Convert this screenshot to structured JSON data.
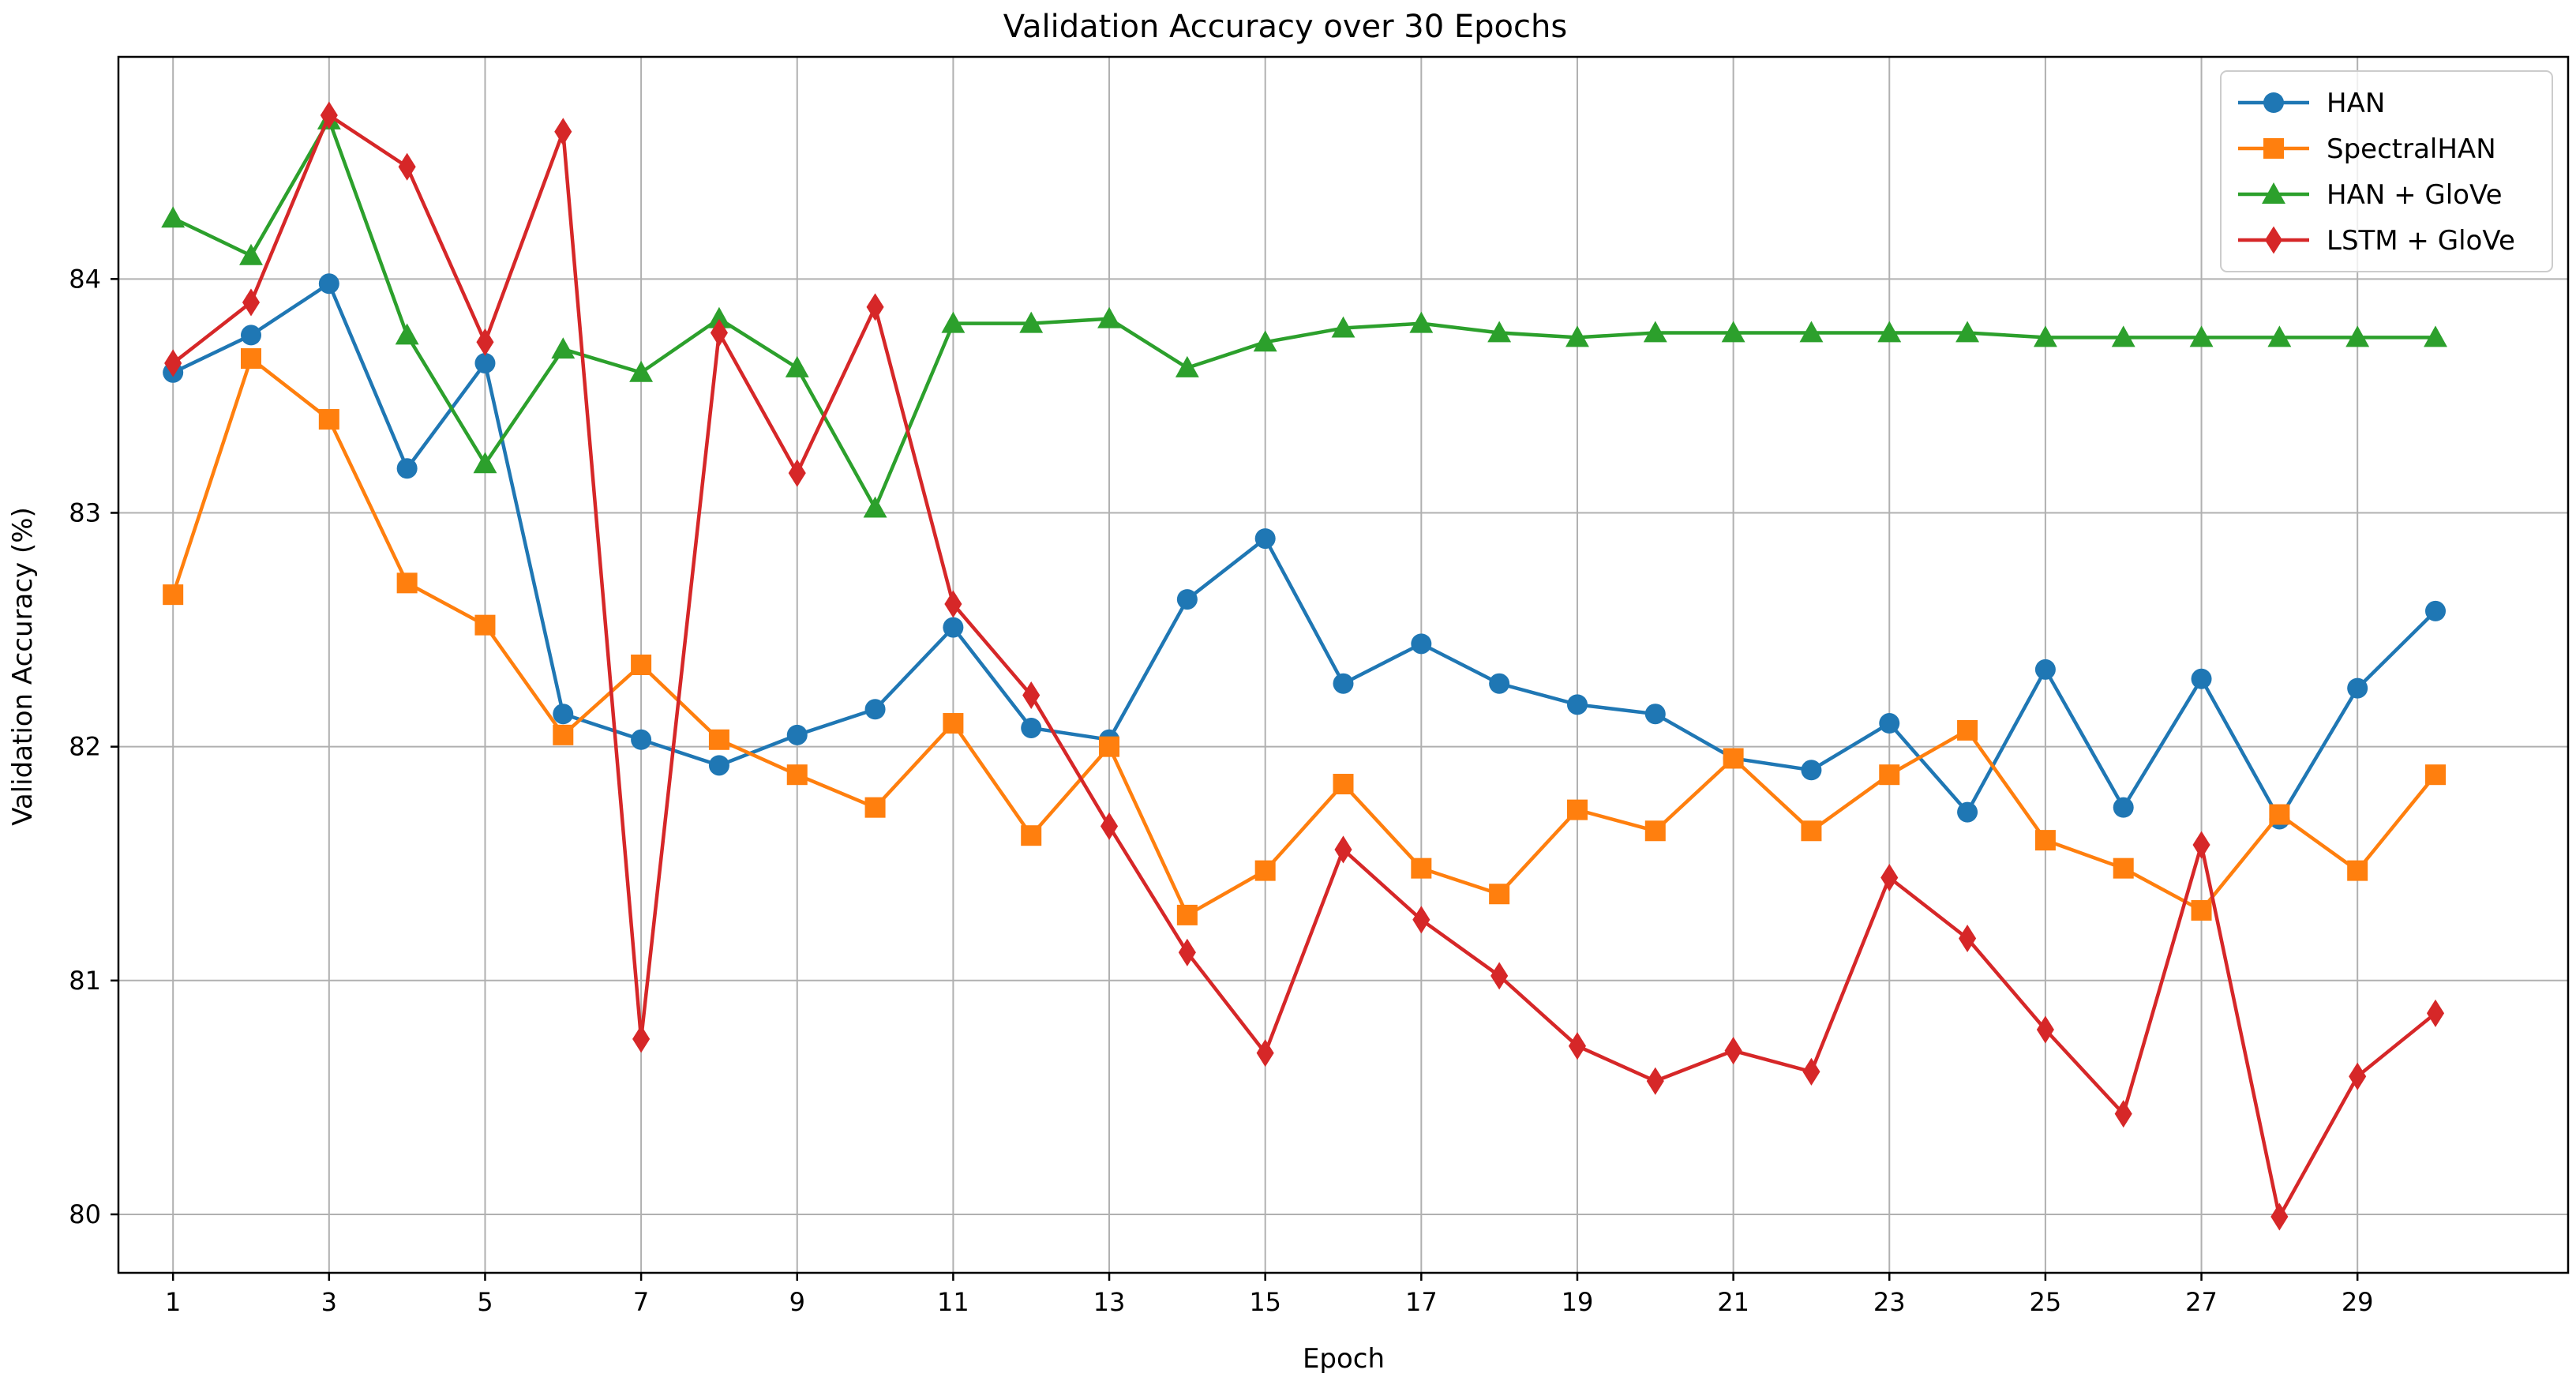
{
  "chart_data": {
    "type": "line",
    "title": "Validation Accuracy over 30 Epochs",
    "xlabel": "Epoch",
    "ylabel": "Validation Accuracy (%)",
    "xlim": [
      0.3,
      31.7
    ],
    "ylim": [
      79.75,
      84.95
    ],
    "xticks": [
      1,
      3,
      5,
      7,
      9,
      11,
      13,
      15,
      17,
      19,
      21,
      23,
      25,
      27,
      29
    ],
    "yticks": [
      80,
      81,
      82,
      83,
      84
    ],
    "grid": true,
    "legend_position": "top-right",
    "x": [
      1,
      2,
      3,
      4,
      5,
      6,
      7,
      8,
      9,
      10,
      11,
      12,
      13,
      14,
      15,
      16,
      17,
      18,
      19,
      20,
      21,
      22,
      23,
      24,
      25,
      26,
      27,
      28,
      29,
      30
    ],
    "series": [
      {
        "name": "HAN",
        "color": "#1f77b4",
        "marker": "circle",
        "values": [
          83.6,
          83.76,
          83.98,
          83.19,
          83.64,
          82.14,
          82.03,
          81.92,
          82.05,
          82.16,
          82.51,
          82.08,
          82.03,
          82.63,
          82.89,
          82.27,
          82.44,
          82.27,
          82.18,
          82.14,
          81.95,
          81.9,
          82.1,
          81.72,
          82.33,
          81.74,
          82.29,
          81.69,
          82.25,
          82.58
        ]
      },
      {
        "name": "SpectralHAN",
        "color": "#ff7f0e",
        "marker": "square",
        "values": [
          82.65,
          83.66,
          83.4,
          82.7,
          82.52,
          82.05,
          82.35,
          82.03,
          81.88,
          81.74,
          82.1,
          81.62,
          82.0,
          81.28,
          81.47,
          81.84,
          81.48,
          81.37,
          81.73,
          81.64,
          81.95,
          81.64,
          81.88,
          82.07,
          81.6,
          81.48,
          81.3,
          81.71,
          81.47,
          81.88
        ]
      },
      {
        "name": "HAN + GloVe",
        "color": "#2ca02c",
        "marker": "triangle",
        "values": [
          84.26,
          84.1,
          84.68,
          83.76,
          83.21,
          83.7,
          83.6,
          83.83,
          83.62,
          83.02,
          83.81,
          83.81,
          83.83,
          83.62,
          83.73,
          83.79,
          83.81,
          83.77,
          83.75,
          83.77,
          83.77,
          83.77,
          83.77,
          83.77,
          83.75,
          83.75,
          83.75,
          83.75,
          83.75,
          83.75
        ]
      },
      {
        "name": "LSTM + GloVe",
        "color": "#d62728",
        "marker": "diamond",
        "values": [
          83.64,
          83.9,
          84.7,
          84.48,
          83.73,
          84.63,
          80.75,
          83.77,
          83.17,
          83.88,
          82.61,
          82.22,
          81.66,
          81.12,
          80.69,
          81.56,
          81.26,
          81.02,
          80.72,
          80.57,
          80.7,
          80.61,
          81.44,
          81.18,
          80.79,
          80.43,
          81.58,
          79.99,
          80.59,
          80.86
        ]
      }
    ]
  }
}
